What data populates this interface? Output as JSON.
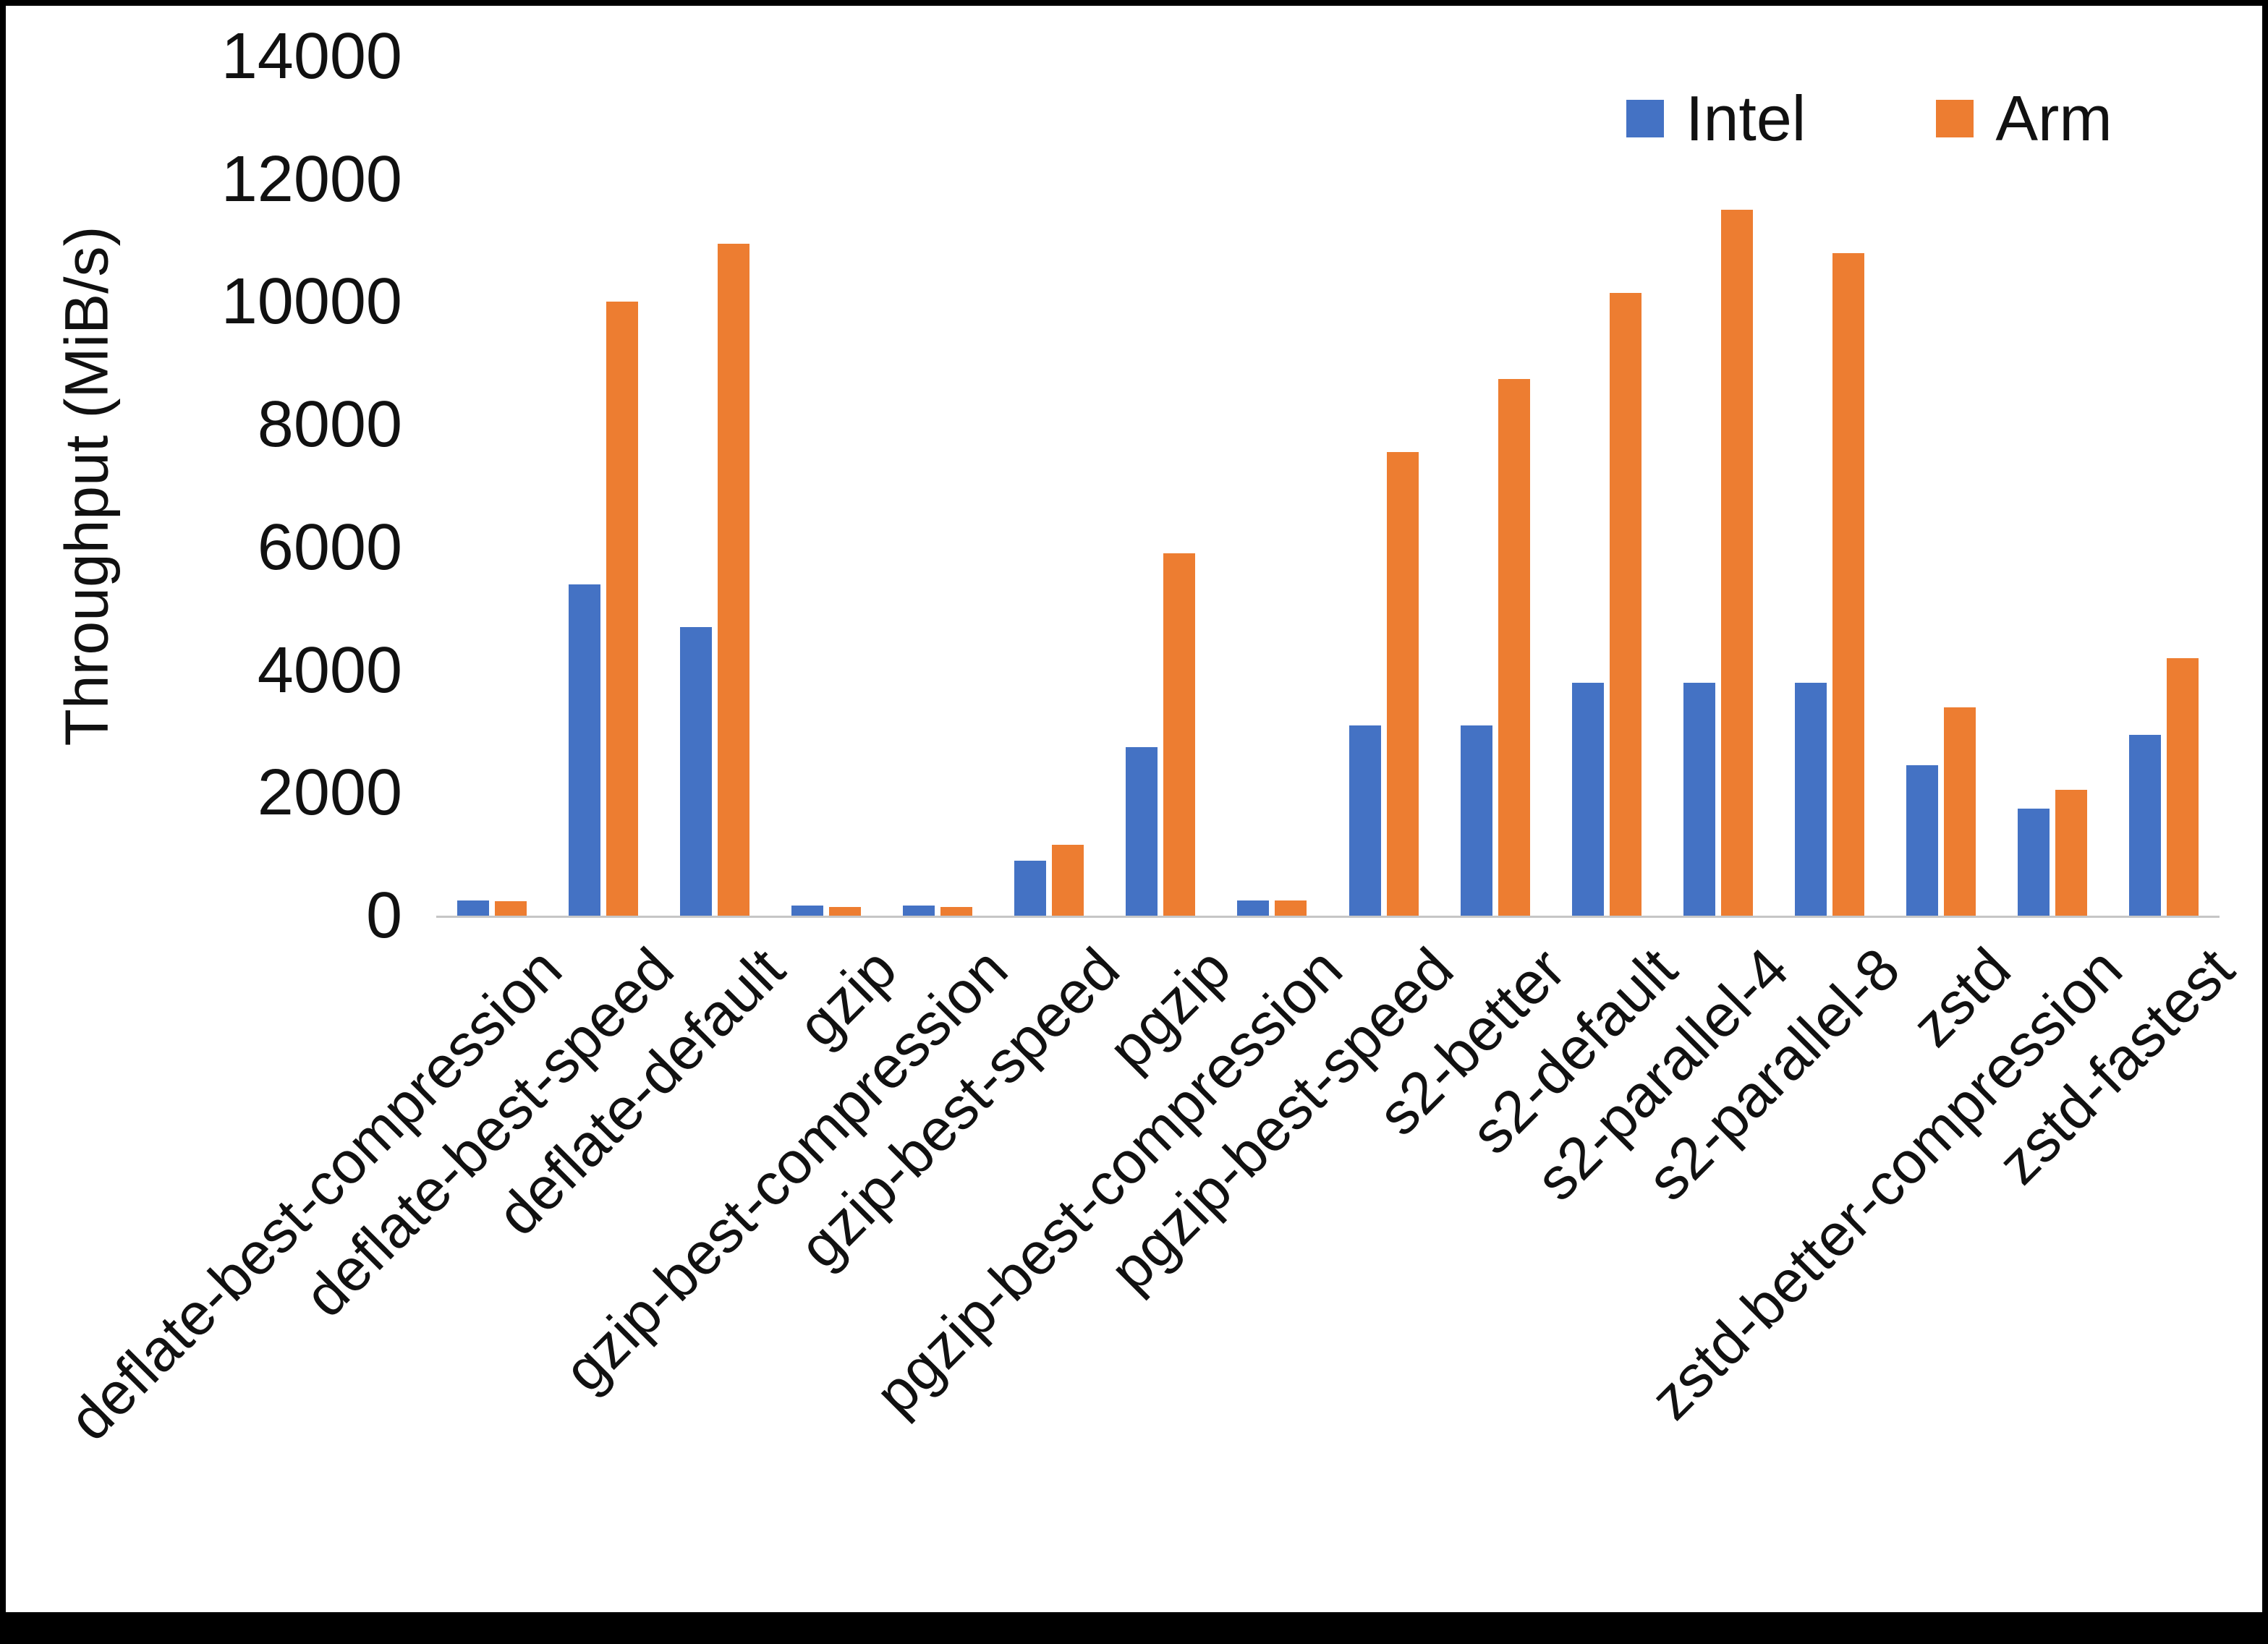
{
  "chart_data": {
    "type": "bar",
    "title": "",
    "ylabel": "Throughput (MiB/s)",
    "xlabel": "",
    "ylim": [
      0,
      14000
    ],
    "ytick_step": 2000,
    "grid": false,
    "legend_position": "top-right",
    "background_color": "#ffffff",
    "frame_color": "#000000",
    "axis_line_color": "#c6c6c6",
    "categories": [
      "deflate-best-compression",
      "deflate-best-speed",
      "deflate-default",
      "gzip",
      "gzip-best-compression",
      "gzip-best-speed",
      "pgzip",
      "pgzip-best-compression",
      "pgzip-best-speed",
      "s2-better",
      "s2-default",
      "s2-parallel-4",
      "s2-parallel-8",
      "zstd",
      "zstd-better-compression",
      "zstd-fastest"
    ],
    "series": [
      {
        "name": "Intel",
        "color": "#4472C4",
        "values": [
          250,
          5400,
          4700,
          160,
          160,
          900,
          2750,
          250,
          3100,
          3100,
          3800,
          3800,
          3800,
          2450,
          1750,
          2950
        ]
      },
      {
        "name": "Arm",
        "color": "#ED7D31",
        "values": [
          240,
          10000,
          10950,
          140,
          140,
          1150,
          5900,
          250,
          7550,
          8750,
          10150,
          11500,
          10800,
          3400,
          2050,
          4200
        ]
      }
    ]
  }
}
